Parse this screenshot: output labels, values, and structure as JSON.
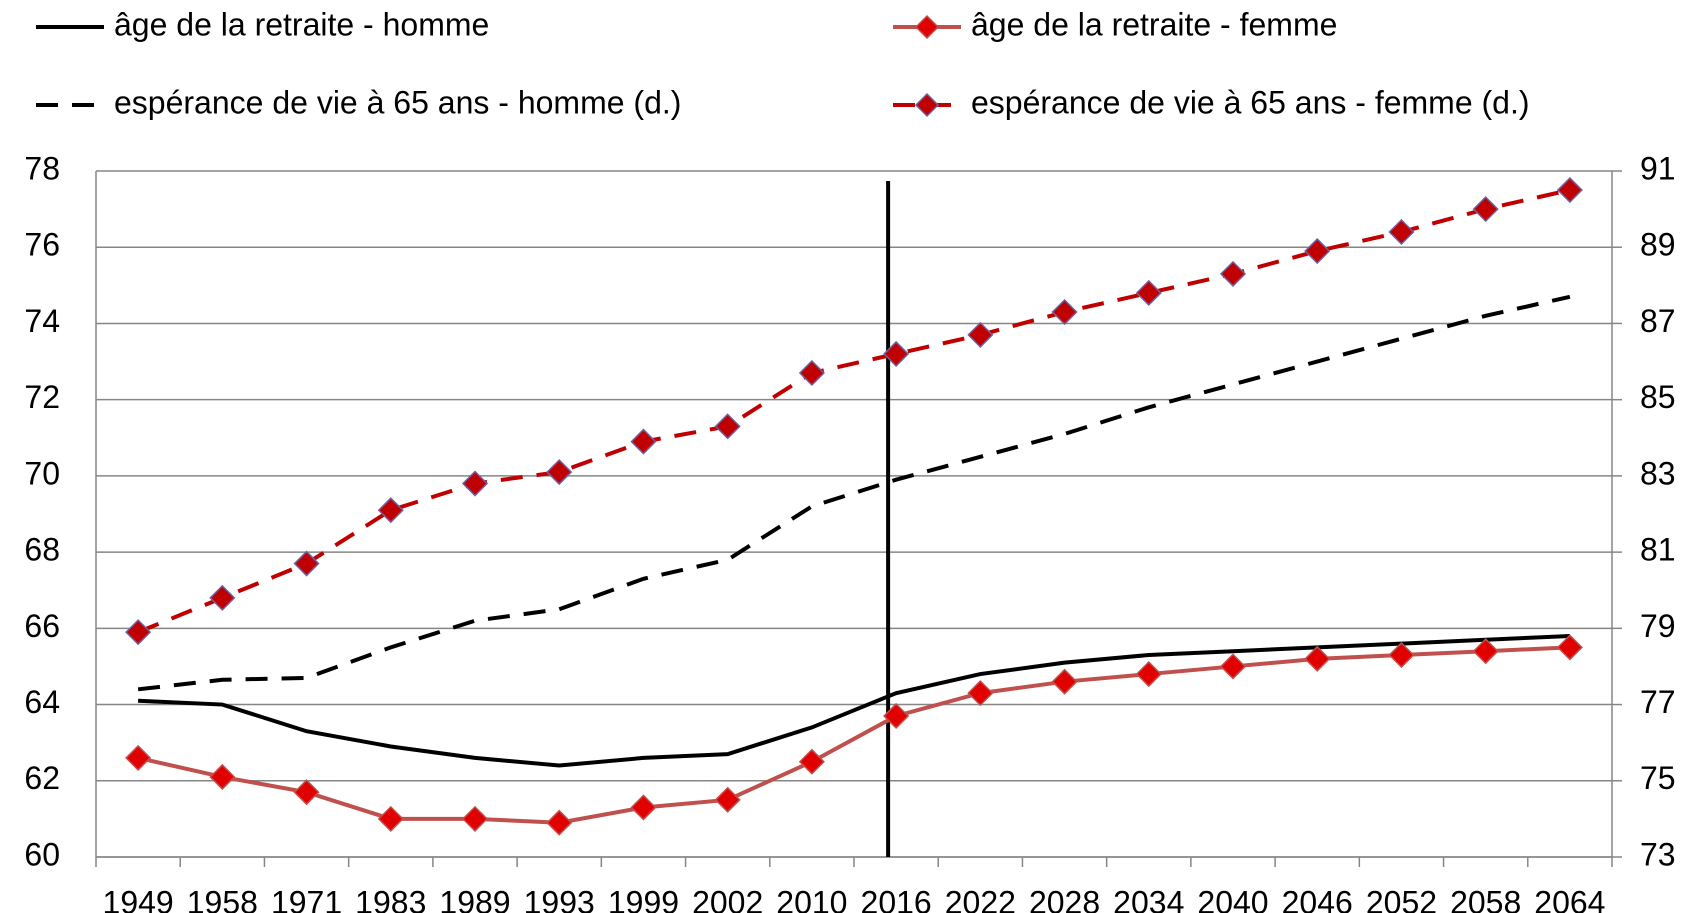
{
  "chart_data": {
    "type": "line",
    "categories": [
      "1949",
      "1958",
      "1971",
      "1983",
      "1989",
      "1993",
      "1999",
      "2002",
      "2010",
      "2016",
      "2022",
      "2028",
      "2034",
      "2040",
      "2046",
      "2052",
      "2058",
      "2064"
    ],
    "ylim": [
      60,
      78
    ],
    "yticks": [
      60,
      62,
      64,
      66,
      68,
      70,
      72,
      74,
      76,
      78
    ],
    "y2lim": [
      73,
      91
    ],
    "y2ticks": [
      73,
      75,
      77,
      79,
      81,
      83,
      85,
      87,
      89,
      91
    ],
    "grid": true,
    "series": [
      {
        "name": "âge de la retraite - homme",
        "color": "#000000",
        "dash": false,
        "marker": null,
        "values": [
          64.1,
          64.0,
          63.3,
          62.9,
          62.6,
          62.4,
          62.6,
          62.7,
          63.4,
          64.3,
          64.8,
          65.1,
          65.3,
          65.4,
          65.5,
          65.6,
          65.7,
          65.8
        ]
      },
      {
        "name": "âge de la retraite - femme",
        "color": "#c0504d",
        "dash": false,
        "marker": "diamond",
        "values": [
          62.6,
          62.1,
          61.7,
          61.0,
          61.0,
          60.9,
          61.3,
          61.5,
          62.5,
          63.7,
          64.3,
          64.6,
          64.8,
          65.0,
          65.2,
          65.3,
          65.4,
          65.5
        ]
      },
      {
        "name": "espérance de vie à 65 ans - homme (d.)",
        "color": "#000000",
        "dash": true,
        "marker": null,
        "axis": "y2",
        "values": [
          77.4,
          77.65,
          77.7,
          78.5,
          79.2,
          79.5,
          80.3,
          80.8,
          82.2,
          82.9,
          83.5,
          84.1,
          84.8,
          85.4,
          86.0,
          86.6,
          87.2,
          87.7
        ]
      },
      {
        "name": "espérance de vie à 65 ans - femme (d.)",
        "color": "#c00000",
        "dash": true,
        "marker": "diamond",
        "axis": "y2",
        "values": [
          78.9,
          79.8,
          80.7,
          82.1,
          82.8,
          83.1,
          83.9,
          84.3,
          85.7,
          86.2,
          86.7,
          87.3,
          87.8,
          88.3,
          88.9,
          89.4,
          90.0,
          90.5
        ]
      }
    ]
  }
}
